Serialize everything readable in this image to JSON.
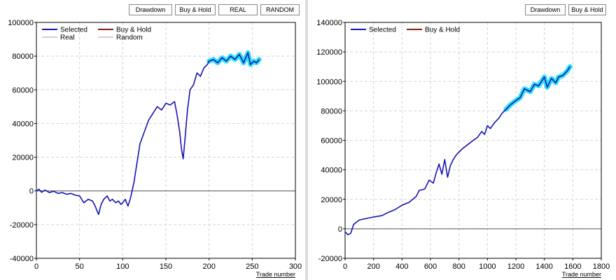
{
  "left_panel": {
    "buttons": [
      {
        "label": "Drawdown"
      },
      {
        "label": "Buy & Hold"
      },
      {
        "label": "REAL"
      },
      {
        "label": "RANDOM"
      }
    ]
  },
  "right_panel": {
    "buttons": [
      {
        "label": "Drawdown"
      },
      {
        "label": "Buy & Hold"
      }
    ]
  },
  "colors": {
    "selected": "#1414b4",
    "buy_hold": "#8b1a1a",
    "real": "#d0d0d0",
    "random": "#e8c8c8",
    "highlight": "#2ee0f5",
    "grid": "#d4d4d4"
  },
  "chart_data": [
    {
      "type": "line",
      "xlabel": "Trade number",
      "xlim": [
        0,
        300
      ],
      "ylim": [
        -40000,
        100000
      ],
      "xticks": [
        0,
        50,
        100,
        150,
        200,
        250,
        300
      ],
      "yticks": [
        -40000,
        -20000,
        0,
        20000,
        40000,
        60000,
        80000,
        100000
      ],
      "grid": true,
      "legend_position": "top-left",
      "legend": [
        "Selected",
        "Buy & Hold",
        "Real",
        "Random"
      ],
      "series": [
        {
          "name": "Selected",
          "x": [
            0,
            3,
            6,
            10,
            15,
            20,
            25,
            30,
            35,
            40,
            45,
            50,
            55,
            60,
            65,
            68,
            72,
            75,
            78,
            82,
            85,
            88,
            92,
            95,
            98,
            100,
            103,
            106,
            108,
            110,
            113,
            116,
            120,
            125,
            130,
            135,
            140,
            145,
            150,
            155,
            160,
            163,
            166,
            168,
            170,
            172,
            175,
            178,
            182,
            186,
            190,
            194,
            198,
            200,
            205,
            210,
            215,
            220,
            225,
            230,
            235,
            240,
            245,
            248,
            252,
            255,
            258
          ],
          "y": [
            0,
            1000,
            -800,
            500,
            -1000,
            -200,
            -1500,
            -1000,
            -2000,
            -1500,
            -2500,
            -3000,
            -7000,
            -5000,
            -6000,
            -9000,
            -14000,
            -8000,
            -5000,
            -3000,
            -6000,
            -5000,
            -7000,
            -6000,
            -8000,
            -7000,
            -5000,
            -9000,
            -6000,
            -2000,
            5000,
            15000,
            28000,
            35000,
            42000,
            46000,
            50000,
            48000,
            52000,
            51000,
            53000,
            45000,
            35000,
            25000,
            19000,
            30000,
            48000,
            60000,
            63000,
            70000,
            68000,
            73000,
            75000,
            77000,
            78000,
            76000,
            79000,
            77000,
            80000,
            78000,
            81000,
            76000,
            82000,
            75000,
            77000,
            76000,
            78000
          ]
        }
      ],
      "highlight": {
        "from_x": 200,
        "to_x": 258
      }
    },
    {
      "type": "line",
      "xlabel": "Trade number",
      "xlim": [
        0,
        1800
      ],
      "ylim": [
        -20000,
        140000
      ],
      "xticks": [
        0,
        200,
        400,
        600,
        800,
        1000,
        1200,
        1400,
        1600,
        1800
      ],
      "yticks": [
        -20000,
        0,
        20000,
        40000,
        60000,
        80000,
        100000,
        120000,
        140000
      ],
      "grid": true,
      "legend_position": "top-left",
      "legend": [
        "Selected",
        "Buy & Hold"
      ],
      "series": [
        {
          "name": "Selected",
          "x": [
            0,
            20,
            40,
            60,
            100,
            150,
            200,
            260,
            300,
            350,
            400,
            450,
            500,
            520,
            560,
            590,
            620,
            640,
            660,
            680,
            700,
            720,
            740,
            760,
            780,
            820,
            860,
            900,
            930,
            960,
            980,
            1000,
            1020,
            1050,
            1080,
            1100,
            1130,
            1160,
            1200,
            1230,
            1260,
            1300,
            1330,
            1360,
            1400,
            1420,
            1450,
            1480,
            1500,
            1530,
            1560,
            1580
          ],
          "y": [
            -2000,
            -4000,
            -3000,
            3000,
            6000,
            7000,
            8000,
            9000,
            11000,
            13000,
            16000,
            18000,
            22000,
            26000,
            27000,
            33000,
            31000,
            38000,
            44000,
            37000,
            47000,
            35000,
            43000,
            47000,
            50000,
            54000,
            57000,
            60000,
            62000,
            66000,
            64000,
            70000,
            68000,
            72000,
            75000,
            78000,
            81000,
            84000,
            87000,
            89000,
            95000,
            93000,
            98000,
            97000,
            103000,
            96000,
            102000,
            99000,
            103000,
            104000,
            107000,
            110000
          ]
        }
      ],
      "highlight": {
        "from_x": 1120,
        "to_x": 1580
      }
    }
  ]
}
